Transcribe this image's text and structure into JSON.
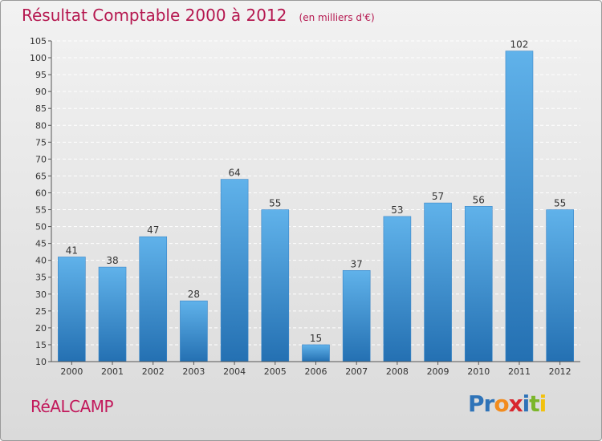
{
  "header": {
    "title": "Résultat Comptable 2000 à 2012",
    "subtitle": "(en milliers d'€)"
  },
  "footer": {
    "town": "RéALCAMP",
    "logo_letters": [
      "P",
      "r",
      "o",
      "x",
      "i",
      "t",
      "i"
    ],
    "logo_colors": [
      "#2e73b8",
      "#2e73b8",
      "#f28c1e",
      "#d8262e",
      "#2e73b8",
      "#7bb62a",
      "#f2c10e"
    ]
  },
  "colors": {
    "bar_light": "#60b2ea",
    "bar_dark": "#2470b2",
    "title": "#b5174f"
  },
  "chart_data": {
    "type": "bar",
    "title": "Résultat Comptable 2000 à 2012",
    "categories": [
      "2000",
      "2001",
      "2002",
      "2003",
      "2004",
      "2005",
      "2006",
      "2007",
      "2008",
      "2009",
      "2010",
      "2011",
      "2012"
    ],
    "values": [
      41,
      38,
      47,
      28,
      64,
      55,
      15,
      37,
      53,
      57,
      56,
      102,
      55
    ],
    "yticks": [
      10,
      15,
      20,
      25,
      30,
      35,
      40,
      45,
      50,
      55,
      60,
      65,
      70,
      75,
      80,
      85,
      90,
      95,
      100,
      105
    ],
    "ylim": [
      10,
      105
    ],
    "grid": true,
    "data_labels": true
  }
}
